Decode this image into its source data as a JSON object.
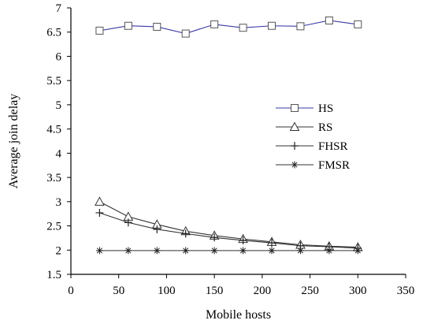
{
  "chart_data": {
    "type": "line",
    "title": "",
    "xlabel": "Mobile hosts",
    "ylabel": "Average join delay",
    "xlim": [
      0,
      350
    ],
    "ylim": [
      1.5,
      7
    ],
    "xticks": [
      "0",
      "50",
      "100",
      "150",
      "200",
      "250",
      "300",
      "350"
    ],
    "yticks": [
      "1.5",
      "2",
      "2.5",
      "3",
      "3.5",
      "4",
      "4.5",
      "5",
      "5.5",
      "6",
      "6.5",
      "7"
    ],
    "grid": false,
    "legend_position": "center-right",
    "x": [
      30,
      60,
      90,
      120,
      150,
      180,
      210,
      240,
      270,
      300
    ],
    "series": [
      {
        "name": "HS",
        "marker": "square",
        "color": "#3a3aa6",
        "values": [
          6.53,
          6.63,
          6.61,
          6.47,
          6.66,
          6.59,
          6.63,
          6.62,
          6.74,
          6.66
        ]
      },
      {
        "name": "RS",
        "marker": "triangle",
        "color": "#333333",
        "values": [
          3.0,
          2.69,
          2.53,
          2.39,
          2.3,
          2.23,
          2.17,
          2.11,
          2.08,
          2.06
        ]
      },
      {
        "name": "FHSR",
        "marker": "plus",
        "color": "#333333",
        "values": [
          2.77,
          2.57,
          2.43,
          2.34,
          2.26,
          2.2,
          2.15,
          2.09,
          2.07,
          2.04
        ]
      },
      {
        "name": "FMSR",
        "marker": "star",
        "color": "#333333",
        "values": [
          1.99,
          1.99,
          1.99,
          1.99,
          1.99,
          1.99,
          1.99,
          1.99,
          1.99,
          1.99
        ]
      }
    ]
  }
}
